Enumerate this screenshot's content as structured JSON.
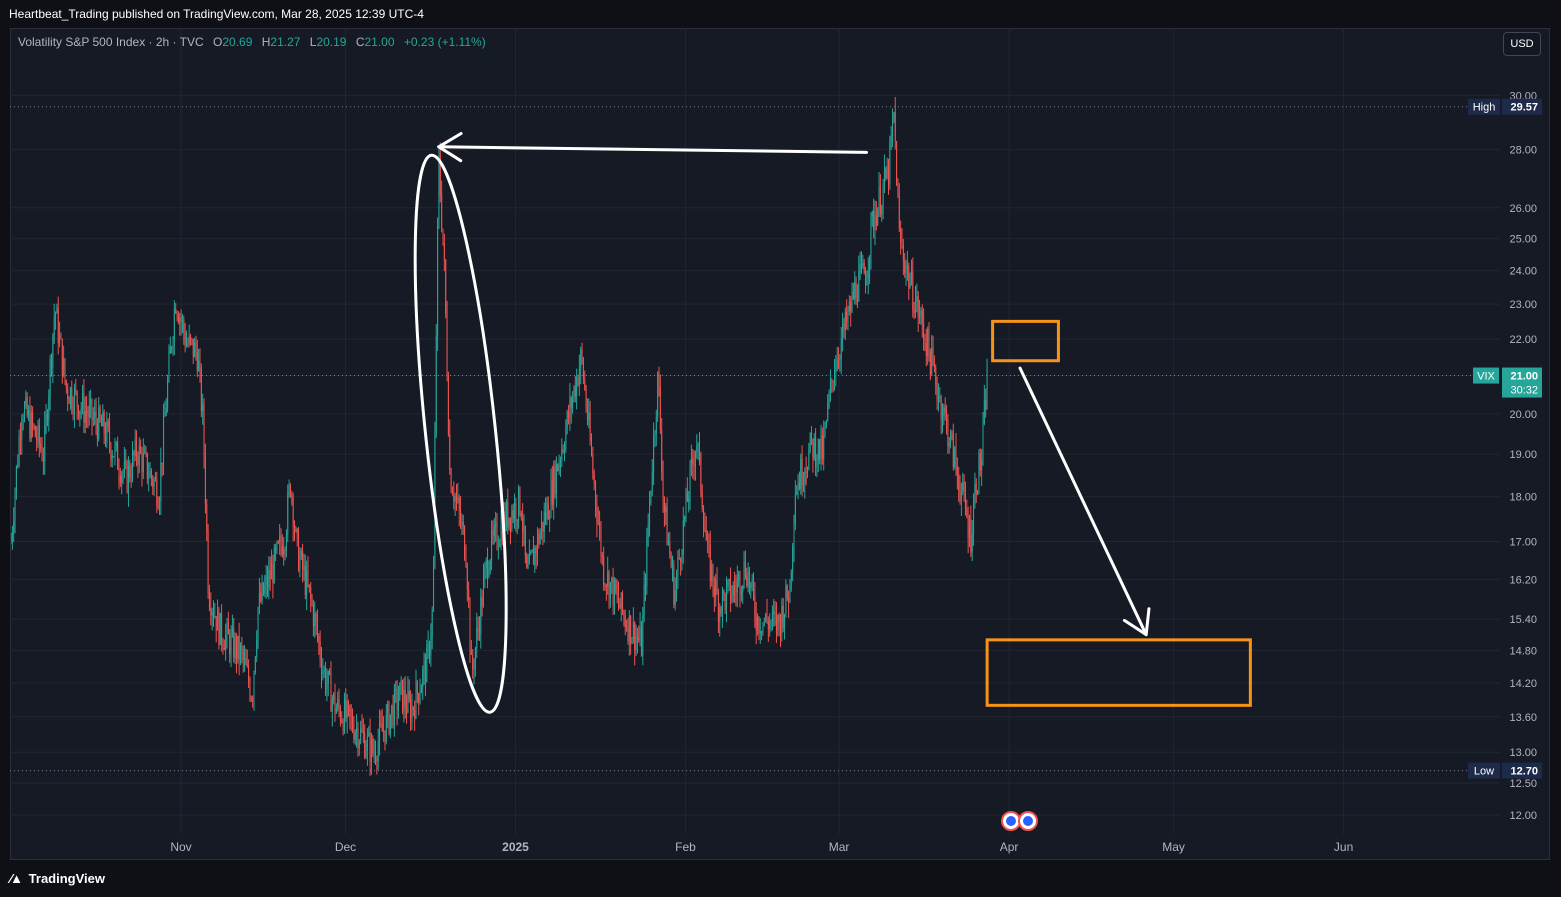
{
  "header": {
    "published_line": "Heartbeat_Trading published on TradingView.com, Mar 28, 2025 12:39 UTC-4"
  },
  "legend": {
    "symbol": "Volatility S&P 500 Index · 2h · TVC",
    "open_label": "O",
    "open": "20.69",
    "high_label": "H",
    "high": "21.27",
    "low_label": "L",
    "low": "20.19",
    "close_label": "C",
    "close": "21.00",
    "change": "+0.23 (+1.11%)"
  },
  "currency_button": "USD",
  "footer": {
    "brand": "TradingView",
    "logo_icon": "tradingview-logo-icon"
  },
  "colors": {
    "background": "#161a25",
    "up": "#26a69a",
    "down": "#ef5350",
    "annotation_box": "#f7931a",
    "annotation_line": "#ffffff",
    "vix_label": "#26a69a",
    "marker_label": "#1e2a4a"
  },
  "chart_data": {
    "type": "candlestick",
    "title": "Volatility S&P 500 Index",
    "timeframe": "2h",
    "x_ticks": [
      "Nov",
      "Dec",
      "2025",
      "Feb",
      "Mar",
      "Apr",
      "May",
      "Jun"
    ],
    "y_ticks": [
      "12.00",
      "12.50",
      "13.00",
      "13.60",
      "14.20",
      "14.80",
      "15.40",
      "16.20",
      "17.00",
      "18.00",
      "19.00",
      "20.00",
      "21.00",
      "22.00",
      "23.00",
      "24.00",
      "25.00",
      "26.00",
      "28.00",
      "30.00"
    ],
    "y_scale": "log",
    "ylim": [
      11.85,
      30.4
    ],
    "grid": true,
    "price_markers": [
      {
        "label": "High",
        "value": "29.57"
      },
      {
        "label": "VIX",
        "value": "21.00",
        "countdown": "30:32"
      },
      {
        "label": "Low",
        "value": "12.70"
      }
    ],
    "approx_path": [
      {
        "date": "2024-10-01",
        "value": 17.0
      },
      {
        "date": "2024-10-03",
        "value": 20.2
      },
      {
        "date": "2024-10-07",
        "value": 19.0
      },
      {
        "date": "2024-10-09",
        "value": 22.9
      },
      {
        "date": "2024-10-11",
        "value": 20.7
      },
      {
        "date": "2024-10-15",
        "value": 20.0
      },
      {
        "date": "2024-10-18",
        "value": 19.6
      },
      {
        "date": "2024-10-22",
        "value": 18.4
      },
      {
        "date": "2024-10-24",
        "value": 19.1
      },
      {
        "date": "2024-10-28",
        "value": 18.1
      },
      {
        "date": "2024-10-31",
        "value": 23.2
      },
      {
        "date": "2024-11-02",
        "value": 21.9
      },
      {
        "date": "2024-11-04",
        "value": 21.6
      },
      {
        "date": "2024-11-05",
        "value": 19.8
      },
      {
        "date": "2024-11-06",
        "value": 16.0
      },
      {
        "date": "2024-11-08",
        "value": 15.2
      },
      {
        "date": "2024-11-12",
        "value": 14.7
      },
      {
        "date": "2024-11-14",
        "value": 14.0
      },
      {
        "date": "2024-11-15",
        "value": 15.6
      },
      {
        "date": "2024-11-18",
        "value": 16.5
      },
      {
        "date": "2024-11-20",
        "value": 17.2
      },
      {
        "date": "2024-11-21",
        "value": 18.4
      },
      {
        "date": "2024-11-22",
        "value": 16.9
      },
      {
        "date": "2024-11-25",
        "value": 15.6
      },
      {
        "date": "2024-11-27",
        "value": 14.4
      },
      {
        "date": "2024-11-29",
        "value": 13.8
      },
      {
        "date": "2024-12-03",
        "value": 13.4
      },
      {
        "date": "2024-12-06",
        "value": 13.0
      },
      {
        "date": "2024-12-09",
        "value": 13.6
      },
      {
        "date": "2024-12-11",
        "value": 14.0
      },
      {
        "date": "2024-12-13",
        "value": 13.7
      },
      {
        "date": "2024-12-16",
        "value": 14.6
      },
      {
        "date": "2024-12-17",
        "value": 15.7
      },
      {
        "date": "2024-12-18",
        "value": 27.6
      },
      {
        "date": "2024-12-19",
        "value": 24.1
      },
      {
        "date": "2024-12-20",
        "value": 18.6
      },
      {
        "date": "2024-12-23",
        "value": 16.8
      },
      {
        "date": "2024-12-24",
        "value": 14.3
      },
      {
        "date": "2024-12-27",
        "value": 16.7
      },
      {
        "date": "2024-12-30",
        "value": 17.5
      },
      {
        "date": "2025-01-02",
        "value": 17.9
      },
      {
        "date": "2025-01-03",
        "value": 16.2
      },
      {
        "date": "2025-01-07",
        "value": 17.8
      },
      {
        "date": "2025-01-10",
        "value": 19.5
      },
      {
        "date": "2025-01-13",
        "value": 21.5
      },
      {
        "date": "2025-01-15",
        "value": 18.7
      },
      {
        "date": "2025-01-17",
        "value": 16.4
      },
      {
        "date": "2025-01-21",
        "value": 15.4
      },
      {
        "date": "2025-01-24",
        "value": 14.9
      },
      {
        "date": "2025-01-27",
        "value": 21.0
      },
      {
        "date": "2025-01-28",
        "value": 17.8
      },
      {
        "date": "2025-01-30",
        "value": 15.9
      },
      {
        "date": "2025-02-03",
        "value": 19.4
      },
      {
        "date": "2025-02-05",
        "value": 16.7
      },
      {
        "date": "2025-02-07",
        "value": 15.7
      },
      {
        "date": "2025-02-10",
        "value": 16.0
      },
      {
        "date": "2025-02-12",
        "value": 16.5
      },
      {
        "date": "2025-02-14",
        "value": 15.4
      },
      {
        "date": "2025-02-18",
        "value": 15.3
      },
      {
        "date": "2025-02-20",
        "value": 16.0
      },
      {
        "date": "2025-02-21",
        "value": 18.2
      },
      {
        "date": "2025-02-24",
        "value": 19.2
      },
      {
        "date": "2025-02-26",
        "value": 19.0
      },
      {
        "date": "2025-02-28",
        "value": 21.2
      },
      {
        "date": "2025-03-03",
        "value": 22.8
      },
      {
        "date": "2025-03-04",
        "value": 23.5
      },
      {
        "date": "2025-03-06",
        "value": 24.0
      },
      {
        "date": "2025-03-07",
        "value": 25.5
      },
      {
        "date": "2025-03-10",
        "value": 27.2
      },
      {
        "date": "2025-03-11",
        "value": 29.2
      },
      {
        "date": "2025-03-12",
        "value": 25.0
      },
      {
        "date": "2025-03-14",
        "value": 23.6
      },
      {
        "date": "2025-03-17",
        "value": 21.9
      },
      {
        "date": "2025-03-19",
        "value": 20.6
      },
      {
        "date": "2025-03-21",
        "value": 19.5
      },
      {
        "date": "2025-03-24",
        "value": 17.7
      },
      {
        "date": "2025-03-25",
        "value": 17.1
      },
      {
        "date": "2025-03-26",
        "value": 18.4
      },
      {
        "date": "2025-03-27",
        "value": 18.9
      },
      {
        "date": "2025-03-28",
        "value": 21.0
      }
    ],
    "annotations": [
      {
        "type": "arrow",
        "from": {
          "date": "2025-03-06",
          "value": 27.9
        },
        "to": {
          "date": "2024-12-18",
          "value": 28.1
        }
      },
      {
        "type": "ellipse",
        "center": {
          "date": "2024-12-22",
          "value": 19.5
        }
      },
      {
        "type": "rectangle",
        "x0": "2025-03-29",
        "x1": "2025-04-10",
        "y0": 21.4,
        "y1": 22.5
      },
      {
        "type": "arrow",
        "from": {
          "date": "2025-04-03",
          "value": 21.2
        },
        "to": {
          "date": "2025-04-26",
          "value": 15.1
        }
      },
      {
        "type": "rectangle",
        "x0": "2025-03-28",
        "x1": "2025-05-15",
        "y0": 13.8,
        "y1": 15.0
      }
    ]
  }
}
